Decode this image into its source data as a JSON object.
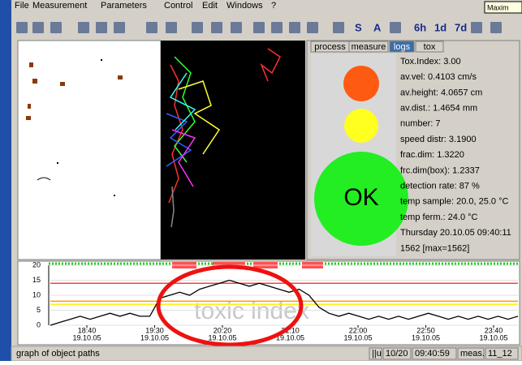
{
  "menu": {
    "items": [
      "File",
      "Measurement",
      "Parameters",
      "Control",
      "Edit",
      "Windows",
      "?"
    ],
    "tooltip": "Maxim"
  },
  "toolbar": {
    "labels": [
      "S",
      "A",
      "6h",
      "1d",
      "7d"
    ]
  },
  "tabs": [
    "process",
    "measure",
    "logs",
    "tox"
  ],
  "status_light": {
    "label": "OK"
  },
  "info": [
    "Tox.Index: 3.00",
    "av.vel: 0.4103 cm/s",
    "av.height: 4.0657 cm",
    "av.dist.: 1.4654 mm",
    "number:    7",
    "speed distr: 3.1900",
    "frac.dim: 1.3220",
    "frc.dim(box): 1.2337",
    "detection rate:  87 %",
    "temp sample:  20.0, 25.0 °C",
    "temp ferm.:  24.0 °C",
    "Thursday 20.10.05 09:40:11",
    "1562 [max=1562]"
  ],
  "chart_data": {
    "type": "line",
    "watermark": "toxic index",
    "x_labels": [
      {
        "time": "18:40",
        "date": "19.10.05"
      },
      {
        "time": "19:30",
        "date": "19.10.05"
      },
      {
        "time": "20:20",
        "date": "19.10.05"
      },
      {
        "time": "21:10",
        "date": "19.10.05"
      },
      {
        "time": "22:00",
        "date": "19.10.05"
      },
      {
        "time": "22:50",
        "date": "19.10.05"
      },
      {
        "time": "23:40",
        "date": "19.10.05"
      }
    ],
    "ylim": [
      0,
      20
    ],
    "yticks": [
      0,
      5,
      10,
      15,
      20
    ],
    "grid": true,
    "color": "#000000",
    "thresholds": [
      {
        "value": 14,
        "color": "#ff4040"
      },
      {
        "value": 8,
        "color": "#ff9900"
      },
      {
        "value": 7,
        "color": "#ffee00"
      }
    ],
    "values": [
      0,
      1,
      2,
      3,
      2,
      3,
      4,
      3,
      4,
      3,
      3,
      9,
      10,
      11,
      10,
      12,
      13,
      14,
      15,
      14,
      13,
      14,
      13,
      12,
      11,
      12,
      10,
      6,
      4,
      3,
      4,
      3,
      2,
      3,
      2,
      3,
      2,
      3,
      4,
      3,
      2,
      3,
      2,
      3,
      2,
      3,
      2,
      3
    ]
  },
  "status_bar": {
    "text": "graph of object paths",
    "fields": [
      "||u",
      "10/20",
      "09:40:59",
      "meas.",
      "11_12"
    ]
  }
}
